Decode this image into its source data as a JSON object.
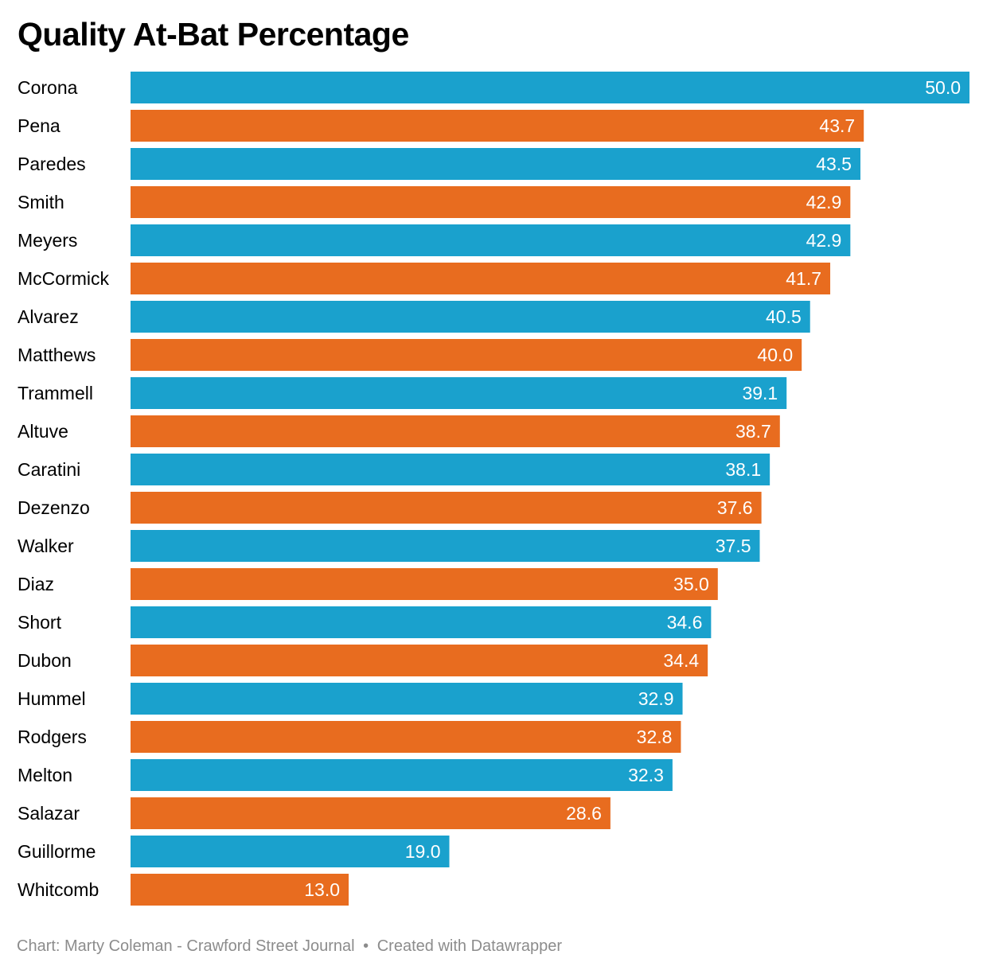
{
  "chart_data": {
    "type": "bar",
    "orientation": "horizontal",
    "title": "Quality At-Bat Percentage",
    "categories": [
      "Corona",
      "Pena",
      "Paredes",
      "Smith",
      "Meyers",
      "McCormick",
      "Alvarez",
      "Matthews",
      "Trammell",
      "Altuve",
      "Caratini",
      "Dezenzo",
      "Walker",
      "Diaz",
      "Short",
      "Dubon",
      "Hummel",
      "Rodgers",
      "Melton",
      "Salazar",
      "Guillorme",
      "Whitcomb"
    ],
    "values": [
      50.0,
      43.7,
      43.5,
      42.9,
      42.9,
      41.7,
      40.5,
      40.0,
      39.1,
      38.7,
      38.1,
      37.6,
      37.5,
      35.0,
      34.6,
      34.4,
      32.9,
      32.8,
      32.3,
      28.6,
      19.0,
      13.0
    ],
    "value_labels": [
      "50.0",
      "43.7",
      "43.5",
      "42.9",
      "42.9",
      "41.7",
      "40.5",
      "40.0",
      "39.1",
      "38.7",
      "38.1",
      "37.6",
      "37.5",
      "35.0",
      "34.6",
      "34.4",
      "32.9",
      "32.8",
      "32.3",
      "28.6",
      "19.0",
      "13.0"
    ],
    "colors": [
      "#1aa1cd",
      "#e86c1f"
    ],
    "color_pattern": "alternating",
    "xlim": [
      0,
      50
    ],
    "xlabel": "",
    "ylabel": "",
    "grid": false,
    "legend": "none"
  },
  "footer": {
    "credit": "Chart: Marty Coleman - Crawford Street Journal",
    "separator": "•",
    "tool": "Created with Datawrapper"
  }
}
